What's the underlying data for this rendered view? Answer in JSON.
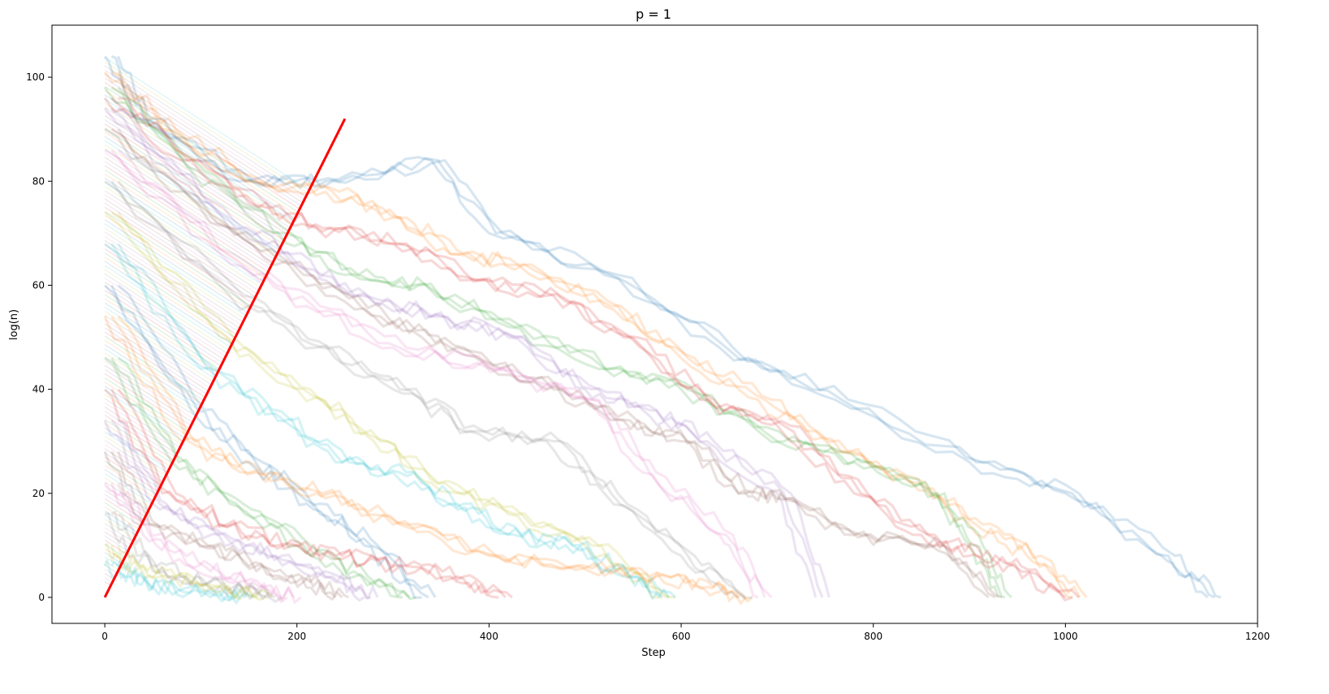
{
  "chart_data": {
    "type": "line",
    "title": "p = 1",
    "xlabel": "Step",
    "ylabel": "log(n)",
    "xlim": [
      -55,
      1200
    ],
    "ylim": [
      -5,
      110
    ],
    "xticks": [
      0,
      200,
      400,
      600,
      800,
      1000,
      1200
    ],
    "yticks": [
      0,
      20,
      40,
      60,
      80,
      100
    ],
    "grid": false,
    "legend": "none",
    "colors": {
      "highlight": "#ff0000",
      "palette": [
        "#1f77b4",
        "#ff7f0e",
        "#2ca02c",
        "#d62728",
        "#9467bd",
        "#8c564b",
        "#e377c2",
        "#7f7f7f",
        "#bcbd22",
        "#17becf"
      ]
    },
    "highlight_series": {
      "x": [
        0,
        250
      ],
      "y": [
        0,
        92
      ]
    },
    "series": [
      {
        "x": [
          0,
          34,
          140,
          230,
          340,
          400,
          520,
          640,
          760,
          900,
          1000,
          1100,
          1148
        ],
        "y": [
          104,
          92,
          80,
          80,
          84,
          70,
          62,
          48,
          38,
          26,
          20,
          8,
          0
        ]
      },
      {
        "x": [
          0,
          60,
          150,
          230,
          300,
          360,
          430,
          520,
          600,
          680,
          760,
          840,
          900,
          960,
          1008
        ],
        "y": [
          101,
          90,
          80,
          78,
          73,
          66,
          64,
          56,
          46,
          38,
          28,
          22,
          14,
          8,
          0
        ]
      },
      {
        "x": [
          0,
          90,
          180,
          250,
          320,
          420,
          520,
          600,
          700,
          780,
          860,
          900,
          930
        ],
        "y": [
          98,
          82,
          70,
          62,
          60,
          52,
          44,
          40,
          30,
          26,
          20,
          10,
          0
        ]
      },
      {
        "x": [
          0,
          80,
          160,
          220,
          300,
          380,
          460,
          540,
          620,
          700,
          780,
          850,
          900,
          940,
          1000
        ],
        "y": [
          96,
          84,
          75,
          71,
          68,
          61,
          58,
          50,
          38,
          33,
          20,
          12,
          8,
          6,
          0
        ]
      },
      {
        "x": [
          0,
          100,
          180,
          260,
          340,
          420,
          500,
          560,
          620,
          700,
          740
        ],
        "y": [
          94,
          76,
          66,
          58,
          54,
          50,
          40,
          36,
          30,
          20,
          0
        ]
      },
      {
        "x": [
          0,
          110,
          200,
          280,
          360,
          460,
          540,
          600,
          660,
          700,
          780,
          860,
          920
        ],
        "y": [
          90,
          72,
          62,
          54,
          48,
          40,
          34,
          30,
          20,
          19,
          12,
          10,
          0
        ]
      },
      {
        "x": [
          0,
          120,
          210,
          300,
          400,
          500,
          560,
          640,
          680
        ],
        "y": [
          86,
          66,
          56,
          48,
          44,
          38,
          24,
          12,
          0
        ]
      },
      {
        "x": [
          0,
          130,
          220,
          300,
          380,
          460,
          520,
          600,
          660
        ],
        "y": [
          80,
          58,
          48,
          40,
          32,
          30,
          20,
          8,
          0
        ]
      },
      {
        "x": [
          0,
          120,
          200,
          280,
          340,
          420,
          500,
          580
        ],
        "y": [
          74,
          50,
          40,
          30,
          22,
          16,
          10,
          0
        ]
      },
      {
        "x": [
          0,
          100,
          180,
          240,
          300,
          360,
          420,
          480,
          540,
          580
        ],
        "y": [
          68,
          44,
          34,
          26,
          24,
          18,
          12,
          10,
          4,
          0
        ]
      },
      {
        "x": [
          0,
          90,
          150,
          210,
          270,
          330
        ],
        "y": [
          60,
          36,
          26,
          18,
          10,
          0
        ]
      },
      {
        "x": [
          0,
          80,
          150,
          220,
          300,
          400,
          480,
          560,
          620,
          660
        ],
        "y": [
          54,
          30,
          24,
          20,
          14,
          8,
          6,
          4,
          2,
          0
        ]
      },
      {
        "x": [
          0,
          70,
          130,
          200,
          260,
          310
        ],
        "y": [
          46,
          26,
          18,
          10,
          4,
          0
        ]
      },
      {
        "x": [
          0,
          60,
          120,
          180,
          240,
          300,
          360,
          410
        ],
        "y": [
          40,
          20,
          14,
          10,
          8,
          6,
          4,
          0
        ]
      },
      {
        "x": [
          0,
          50,
          110,
          170,
          230,
          270
        ],
        "y": [
          34,
          18,
          12,
          8,
          4,
          0
        ]
      },
      {
        "x": [
          0,
          40,
          100,
          150,
          200,
          240
        ],
        "y": [
          28,
          14,
          10,
          6,
          3,
          0
        ]
      },
      {
        "x": [
          0,
          40,
          90,
          140,
          190
        ],
        "y": [
          22,
          12,
          6,
          3,
          0
        ]
      },
      {
        "x": [
          0,
          30,
          70,
          120,
          170
        ],
        "y": [
          16,
          8,
          4,
          2,
          0
        ]
      },
      {
        "x": [
          0,
          20,
          60,
          110,
          160
        ],
        "y": [
          10,
          6,
          4,
          2,
          0
        ]
      },
      {
        "x": [
          0,
          20,
          50,
          100,
          140
        ],
        "y": [
          6,
          4,
          2,
          1,
          0
        ]
      }
    ]
  }
}
